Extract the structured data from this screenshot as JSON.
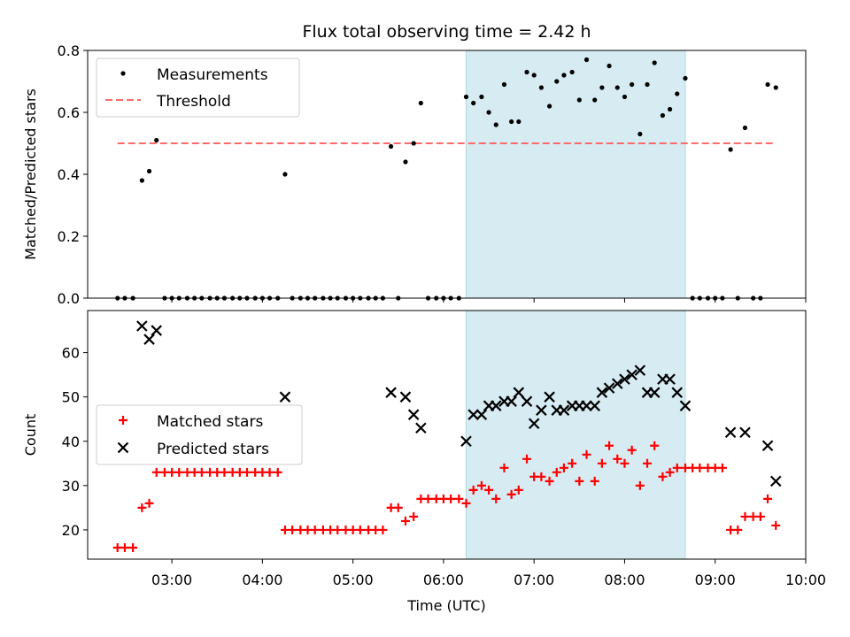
{
  "chart_data": [
    {
      "type": "scatter",
      "title": "Flux total observing time = 2.42 h",
      "xlabel": "",
      "ylabel": "Matched/Predicted stars",
      "x_unit": "hours UTC",
      "xlim": [
        2.07,
        10.0
      ],
      "ylim": [
        0,
        0.8
      ],
      "yticks": [
        "0.0",
        "0.2",
        "0.4",
        "0.6",
        "0.8"
      ],
      "shaded_span": {
        "from": 6.25,
        "to": 8.67,
        "color": "#add8e6"
      },
      "threshold": {
        "value": 0.5,
        "from": 2.4,
        "to": 9.67,
        "color": "#ff6b6b",
        "style": "dashed"
      },
      "legend": {
        "position": "top-left",
        "entries": [
          "Measurements",
          "Threshold"
        ]
      },
      "series": [
        {
          "name": "Measurements",
          "marker": "dot",
          "color": "#000000",
          "points": [
            [
              2.4,
              0
            ],
            [
              2.48,
              0
            ],
            [
              2.57,
              0
            ],
            [
              2.67,
              0.38
            ],
            [
              2.75,
              0.41
            ],
            [
              2.83,
              0.51
            ],
            [
              2.92,
              0
            ],
            [
              3.0,
              0
            ],
            [
              3.08,
              0
            ],
            [
              3.17,
              0
            ],
            [
              3.25,
              0
            ],
            [
              3.33,
              0
            ],
            [
              3.42,
              0
            ],
            [
              3.5,
              0
            ],
            [
              3.58,
              0
            ],
            [
              3.67,
              0
            ],
            [
              3.75,
              0
            ],
            [
              3.83,
              0
            ],
            [
              3.92,
              0
            ],
            [
              4.0,
              0
            ],
            [
              4.08,
              0
            ],
            [
              4.17,
              0
            ],
            [
              4.25,
              0.4
            ],
            [
              4.33,
              0
            ],
            [
              4.42,
              0
            ],
            [
              4.5,
              0
            ],
            [
              4.58,
              0
            ],
            [
              4.67,
              0
            ],
            [
              4.75,
              0
            ],
            [
              4.83,
              0
            ],
            [
              4.92,
              0
            ],
            [
              5.0,
              0
            ],
            [
              5.08,
              0
            ],
            [
              5.17,
              0
            ],
            [
              5.25,
              0
            ],
            [
              5.33,
              0
            ],
            [
              5.42,
              0.49
            ],
            [
              5.5,
              0
            ],
            [
              5.58,
              0.44
            ],
            [
              5.67,
              0.5
            ],
            [
              5.75,
              0.63
            ],
            [
              5.83,
              0
            ],
            [
              5.92,
              0
            ],
            [
              6.0,
              0
            ],
            [
              6.08,
              0
            ],
            [
              6.17,
              0
            ],
            [
              6.25,
              0.65
            ],
            [
              6.33,
              0.63
            ],
            [
              6.42,
              0.65
            ],
            [
              6.5,
              0.6
            ],
            [
              6.58,
              0.56
            ],
            [
              6.67,
              0.69
            ],
            [
              6.75,
              0.57
            ],
            [
              6.83,
              0.57
            ],
            [
              6.92,
              0.73
            ],
            [
              7.0,
              0.72
            ],
            [
              7.08,
              0.68
            ],
            [
              7.17,
              0.62
            ],
            [
              7.25,
              0.7
            ],
            [
              7.33,
              0.72
            ],
            [
              7.42,
              0.73
            ],
            [
              7.5,
              0.64
            ],
            [
              7.58,
              0.77
            ],
            [
              7.67,
              0.64
            ],
            [
              7.75,
              0.68
            ],
            [
              7.83,
              0.75
            ],
            [
              7.92,
              0.68
            ],
            [
              8.0,
              0.65
            ],
            [
              8.08,
              0.69
            ],
            [
              8.17,
              0.53
            ],
            [
              8.25,
              0.69
            ],
            [
              8.33,
              0.76
            ],
            [
              8.42,
              0.59
            ],
            [
              8.5,
              0.61
            ],
            [
              8.58,
              0.66
            ],
            [
              8.67,
              0.71
            ],
            [
              8.75,
              0
            ],
            [
              8.83,
              0
            ],
            [
              8.92,
              0
            ],
            [
              9.0,
              0
            ],
            [
              9.08,
              0
            ],
            [
              9.17,
              0.48
            ],
            [
              9.25,
              0
            ],
            [
              9.33,
              0.55
            ],
            [
              9.42,
              0
            ],
            [
              9.5,
              0
            ],
            [
              9.58,
              0.69
            ],
            [
              9.67,
              0.68
            ]
          ]
        }
      ]
    },
    {
      "type": "scatter",
      "title": "",
      "xlabel": "Time (UTC)",
      "ylabel": "Count",
      "x_unit": "hours UTC",
      "xlim": [
        2.07,
        10.0
      ],
      "ylim": [
        13.4,
        69.5
      ],
      "xticks": [
        "03:00",
        "04:00",
        "05:00",
        "06:00",
        "07:00",
        "08:00",
        "09:00",
        "10:00"
      ],
      "yticks": [
        "20",
        "30",
        "40",
        "50",
        "60"
      ],
      "shaded_span": {
        "from": 6.25,
        "to": 8.67,
        "color": "#add8e6"
      },
      "legend": {
        "position": "center-left",
        "entries": [
          "Matched stars",
          "Predicted stars"
        ]
      },
      "series": [
        {
          "name": "Matched stars",
          "marker": "plus",
          "color": "#ff0000",
          "points": [
            [
              2.4,
              16
            ],
            [
              2.48,
              16
            ],
            [
              2.57,
              16
            ],
            [
              2.67,
              25
            ],
            [
              2.75,
              26
            ],
            [
              2.83,
              33
            ],
            [
              2.92,
              33
            ],
            [
              3.0,
              33
            ],
            [
              3.08,
              33
            ],
            [
              3.17,
              33
            ],
            [
              3.25,
              33
            ],
            [
              3.33,
              33
            ],
            [
              3.42,
              33
            ],
            [
              3.5,
              33
            ],
            [
              3.58,
              33
            ],
            [
              3.67,
              33
            ],
            [
              3.75,
              33
            ],
            [
              3.83,
              33
            ],
            [
              3.92,
              33
            ],
            [
              4.0,
              33
            ],
            [
              4.08,
              33
            ],
            [
              4.17,
              33
            ],
            [
              4.25,
              20
            ],
            [
              4.33,
              20
            ],
            [
              4.42,
              20
            ],
            [
              4.5,
              20
            ],
            [
              4.58,
              20
            ],
            [
              4.67,
              20
            ],
            [
              4.75,
              20
            ],
            [
              4.83,
              20
            ],
            [
              4.92,
              20
            ],
            [
              5.0,
              20
            ],
            [
              5.08,
              20
            ],
            [
              5.17,
              20
            ],
            [
              5.25,
              20
            ],
            [
              5.33,
              20
            ],
            [
              5.42,
              25
            ],
            [
              5.5,
              25
            ],
            [
              5.58,
              22
            ],
            [
              5.67,
              23
            ],
            [
              5.75,
              27
            ],
            [
              5.83,
              27
            ],
            [
              5.92,
              27
            ],
            [
              6.0,
              27
            ],
            [
              6.08,
              27
            ],
            [
              6.17,
              27
            ],
            [
              6.25,
              26
            ],
            [
              6.33,
              29
            ],
            [
              6.42,
              30
            ],
            [
              6.5,
              29
            ],
            [
              6.58,
              27
            ],
            [
              6.67,
              34
            ],
            [
              6.75,
              28
            ],
            [
              6.83,
              29
            ],
            [
              6.92,
              36
            ],
            [
              7.0,
              32
            ],
            [
              7.08,
              32
            ],
            [
              7.17,
              31
            ],
            [
              7.25,
              33
            ],
            [
              7.33,
              34
            ],
            [
              7.42,
              35
            ],
            [
              7.5,
              31
            ],
            [
              7.58,
              37
            ],
            [
              7.67,
              31
            ],
            [
              7.75,
              35
            ],
            [
              7.83,
              39
            ],
            [
              7.92,
              36
            ],
            [
              8.0,
              35
            ],
            [
              8.08,
              38
            ],
            [
              8.17,
              30
            ],
            [
              8.25,
              35
            ],
            [
              8.33,
              39
            ],
            [
              8.42,
              32
            ],
            [
              8.5,
              33
            ],
            [
              8.58,
              34
            ],
            [
              8.67,
              34
            ],
            [
              8.75,
              34
            ],
            [
              8.83,
              34
            ],
            [
              8.92,
              34
            ],
            [
              9.0,
              34
            ],
            [
              9.08,
              34
            ],
            [
              9.17,
              20
            ],
            [
              9.25,
              20
            ],
            [
              9.33,
              23
            ],
            [
              9.42,
              23
            ],
            [
              9.5,
              23
            ],
            [
              9.58,
              27
            ],
            [
              9.67,
              21
            ]
          ]
        },
        {
          "name": "Predicted stars",
          "marker": "x",
          "color": "#000000",
          "points": [
            [
              2.67,
              66
            ],
            [
              2.75,
              63
            ],
            [
              2.83,
              65
            ],
            [
              4.25,
              50
            ],
            [
              5.42,
              51
            ],
            [
              5.58,
              50
            ],
            [
              5.67,
              46
            ],
            [
              5.75,
              43
            ],
            [
              6.25,
              40
            ],
            [
              6.33,
              46
            ],
            [
              6.42,
              46
            ],
            [
              6.5,
              48
            ],
            [
              6.58,
              48
            ],
            [
              6.67,
              49
            ],
            [
              6.75,
              49
            ],
            [
              6.83,
              51
            ],
            [
              6.92,
              49
            ],
            [
              7.0,
              44
            ],
            [
              7.08,
              47
            ],
            [
              7.17,
              50
            ],
            [
              7.25,
              47
            ],
            [
              7.33,
              47
            ],
            [
              7.42,
              48
            ],
            [
              7.5,
              48
            ],
            [
              7.58,
              48
            ],
            [
              7.67,
              48
            ],
            [
              7.75,
              51
            ],
            [
              7.83,
              52
            ],
            [
              7.92,
              53
            ],
            [
              8.0,
              54
            ],
            [
              8.08,
              55
            ],
            [
              8.17,
              56
            ],
            [
              8.25,
              51
            ],
            [
              8.33,
              51
            ],
            [
              8.42,
              54
            ],
            [
              8.5,
              54
            ],
            [
              8.58,
              51
            ],
            [
              8.67,
              48
            ],
            [
              9.17,
              42
            ],
            [
              9.33,
              42
            ],
            [
              9.58,
              39
            ],
            [
              9.67,
              31
            ]
          ]
        }
      ]
    }
  ]
}
